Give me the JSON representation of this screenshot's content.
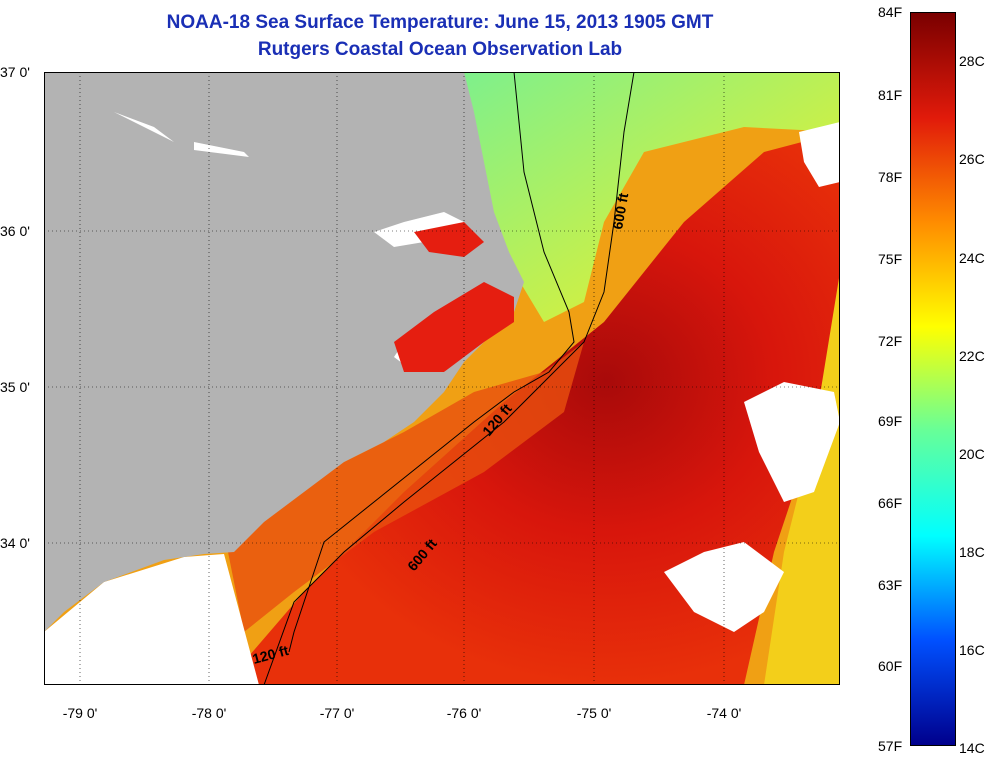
{
  "title": {
    "line1": "NOAA-18 Sea Surface Temperature:  June 15, 2013 1905 GMT",
    "line2": "Rutgers Coastal Ocean Observation Lab"
  },
  "map": {
    "lat_labels": [
      "37 0'",
      "36 0'",
      "35 0'",
      "34 0'"
    ],
    "lon_labels": [
      "-79 0'",
      "-78 0'",
      "-77 0'",
      "-76 0'",
      "-75 0'",
      "-74 0'"
    ],
    "isobath_labels": [
      "600 ft",
      "120 ft",
      "600 ft",
      "120 ft"
    ]
  },
  "colorbar": {
    "fahrenheit_labels": [
      "84F",
      "81F",
      "78F",
      "75F",
      "72F",
      "69F",
      "66F",
      "63F",
      "60F",
      "57F"
    ],
    "celsius_labels": [
      "28C",
      "26C",
      "24C",
      "22C",
      "20C",
      "18C",
      "16C",
      "14C"
    ],
    "colors": {
      "top": "#7a0000",
      "high": "#e11a0a",
      "warm": "#ff8c00",
      "mid": "#ffff00",
      "cool": "#66ff99",
      "cyan": "#00ffff",
      "blue": "#0050ff",
      "bottom": "#00008c"
    }
  },
  "colors": {
    "land": "#b3b3b3",
    "title": "#1a2fb5",
    "cloud": "#ffffff"
  }
}
